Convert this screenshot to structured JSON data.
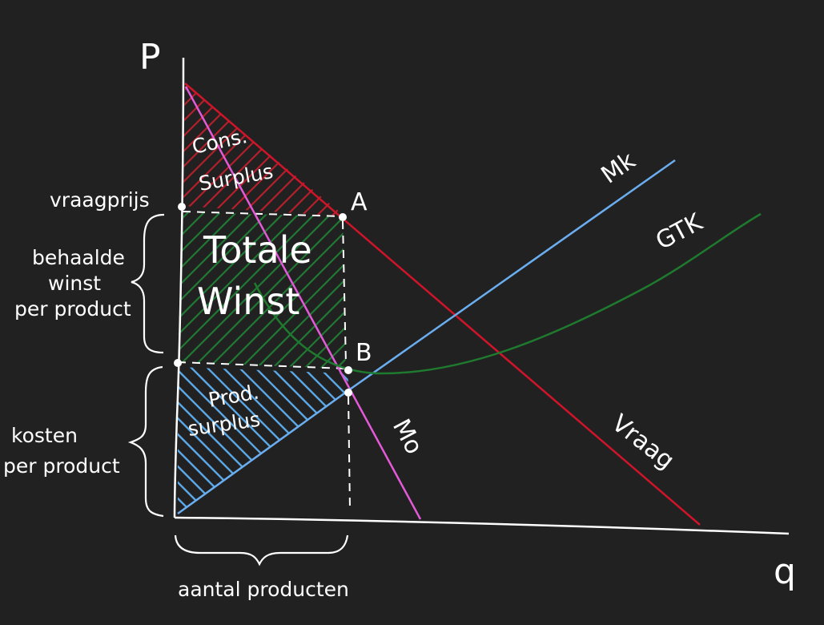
{
  "diagram": {
    "axes": {
      "y_label": "P",
      "x_label": "q"
    },
    "curves": {
      "mk": {
        "label": "Mk",
        "color": "#6aaef0"
      },
      "gtk": {
        "label": "GTK",
        "color": "#1e7a2e"
      },
      "vraag": {
        "label": "Vraag",
        "color": "#d0142a"
      },
      "mo": {
        "label": "Mo",
        "color": "#e35ad9"
      }
    },
    "points": {
      "a": "A",
      "b": "B"
    },
    "areas": {
      "cons_surplus": {
        "line1": "Cons.",
        "line2": "Surplus",
        "color": "#b3202c"
      },
      "totale_winst": {
        "line1": "Totale",
        "line2": "Winst",
        "color": "#1f7a33"
      },
      "prod_surplus": {
        "line1": "Prod.",
        "line2": "surplus",
        "color": "#5aa7e6"
      }
    },
    "labels": {
      "vraagprijs": "vraagprijs",
      "behaalde_winst": [
        "behaalde",
        "winst",
        "per product"
      ],
      "kosten": [
        "kosten",
        "per product"
      ],
      "aantal_producten": "aantal producten"
    },
    "colors": {
      "background": "#222121",
      "ink": "#ffffff"
    }
  }
}
